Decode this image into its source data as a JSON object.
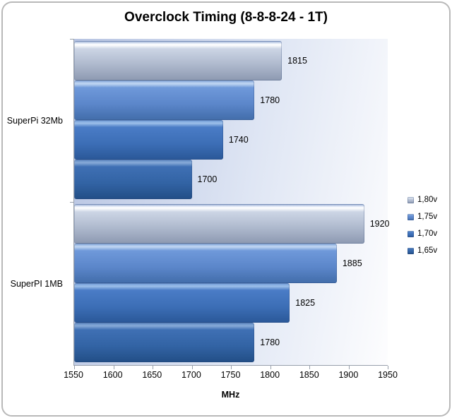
{
  "frame": {
    "border_color": "#b9b9b9"
  },
  "chart_data": {
    "type": "bar",
    "orientation": "horizontal",
    "title": "Overclock Timing (8-8-8-24 - 1T)",
    "xlabel": "MHz",
    "categories": [
      "SuperPi 32Mb",
      "SuperPI 1MB"
    ],
    "series": [
      {
        "name": "1,80v",
        "values": [
          1815,
          1920
        ],
        "base_color": "#aeb9cd",
        "gradient": [
          "#8fa6d0 0%",
          "#eef3fb 7%",
          "#ffffff 10%",
          "#ccd5e5 20%",
          "#aeb9cd 60%",
          "#8d99b1 100%"
        ]
      },
      {
        "name": "1,75v",
        "values": [
          1780,
          1885
        ],
        "base_color": "#5b86ca",
        "gradient": [
          "#86aade 0%",
          "#c2d7f2 8%",
          "#6f99da 18%",
          "#5b86ca 60%",
          "#426daa 100%"
        ]
      },
      {
        "name": "1,70v",
        "values": [
          1740,
          1825
        ],
        "base_color": "#3c6eb6",
        "gradient": [
          "#6a95d2 0%",
          "#9dc0ea 8%",
          "#4a7cc6 18%",
          "#3c6eb6 60%",
          "#2a5898 100%"
        ]
      },
      {
        "name": "1,65v",
        "values": [
          1700,
          1780
        ],
        "base_color": "#3263a4",
        "gradient": [
          "#5c87c2 0%",
          "#88abd8 8%",
          "#3f70b4 18%",
          "#3263a4 60%",
          "#224e86 100%"
        ]
      }
    ],
    "xlim": [
      1550,
      1950
    ],
    "xticks": [
      1550,
      1600,
      1650,
      1700,
      1750,
      1800,
      1850,
      1900,
      1950
    ],
    "legend_position": "right",
    "grid": false,
    "axis_color": "#98a0ac",
    "plot_bg_gradient": [
      "#b7c4e2",
      "#dfe6f4",
      "#fdfdfe"
    ]
  }
}
